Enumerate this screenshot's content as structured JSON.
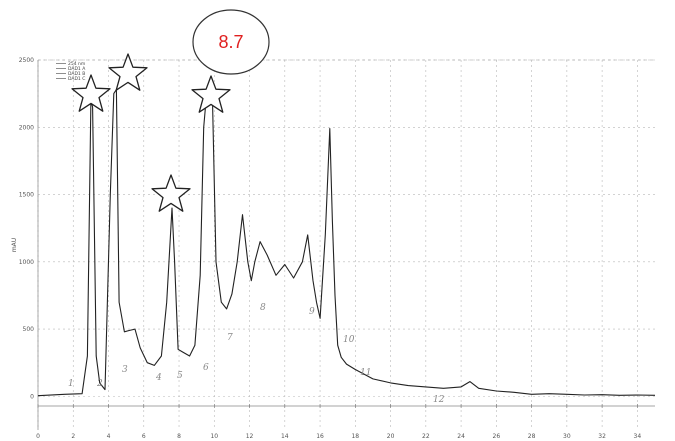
{
  "chart_data": {
    "type": "line",
    "title": "",
    "xlabel": "",
    "ylabel": "mAU",
    "xlim": [
      0,
      35
    ],
    "ylim": [
      -250,
      2500
    ],
    "x_ticks": [
      0,
      2,
      4,
      6,
      8,
      10,
      12,
      14,
      16,
      18,
      20,
      22,
      24,
      26,
      28,
      30,
      32,
      34
    ],
    "y_ticks": [
      0,
      500,
      1000,
      1500,
      2000,
      2500
    ],
    "grid": true,
    "legend": {
      "position": "top-left",
      "entries": [
        "254 nm",
        "DAD1 A",
        "DAD1 B",
        "DAD1 C"
      ]
    },
    "series": [
      {
        "x": [
          0,
          1.5,
          2.5,
          2.8,
          3.0,
          3.1,
          3.3,
          3.5,
          3.8,
          4.1,
          4.3,
          4.45,
          4.6,
          4.9,
          5.2,
          5.5,
          5.8,
          6.2,
          6.6,
          7.0,
          7.3,
          7.6,
          7.75,
          7.95,
          8.2,
          8.6,
          8.9,
          9.2,
          9.4,
          9.6,
          9.75,
          9.9,
          10.1,
          10.4,
          10.7,
          11.0,
          11.3,
          11.6,
          11.9,
          12.1,
          12.3,
          12.6,
          13.0,
          13.5,
          14.0,
          14.5,
          15.0,
          15.3,
          15.6,
          15.8,
          16.0,
          16.3,
          16.55,
          16.7,
          16.85,
          17.0,
          17.2,
          17.5,
          18.0,
          19.0,
          20.0,
          21.0,
          22.0,
          23.0,
          24.0,
          24.5,
          25.0,
          26.0,
          27.0,
          28.0,
          29.0,
          30.0,
          31.0,
          32.0,
          33.0,
          34.0,
          35.0
        ],
        "values": [
          5,
          15,
          20,
          300,
          2200,
          2150,
          300,
          100,
          50,
          1500,
          2250,
          2280,
          700,
          480,
          490,
          500,
          360,
          250,
          230,
          300,
          700,
          1400,
          1000,
          350,
          330,
          300,
          380,
          900,
          2000,
          2300,
          2350,
          2200,
          1000,
          700,
          650,
          760,
          1000,
          1350,
          1000,
          860,
          1000,
          1150,
          1050,
          900,
          980,
          880,
          1000,
          1200,
          860,
          700,
          580,
          1200,
          1990,
          1300,
          750,
          380,
          290,
          240,
          200,
          130,
          100,
          80,
          70,
          60,
          70,
          110,
          60,
          40,
          30,
          15,
          20,
          15,
          10,
          12,
          8,
          10,
          8
        ]
      }
    ],
    "annotations": [
      "1",
      "2",
      "3",
      "4",
      "5",
      "6",
      "7",
      "8",
      "9",
      "10",
      "11",
      "12"
    ],
    "badge": "8.7"
  }
}
